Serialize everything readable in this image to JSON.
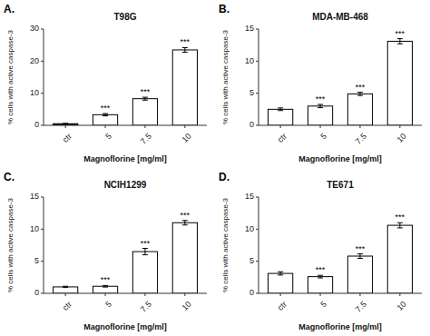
{
  "chart_data": [
    {
      "type": "bar",
      "title": "T98G",
      "categories": [
        "ctr",
        "5",
        "7.5",
        "10"
      ],
      "values": [
        0.5,
        3.3,
        8.3,
        23.5
      ],
      "errors": [
        0.1,
        0.35,
        0.45,
        0.7
      ],
      "colors": [
        "#1a1a1a",
        "#ffffff",
        "#ffffff",
        "#ffffff"
      ],
      "xlabel": "Magnoflorine [mg/ml]",
      "ylabel": "% cells with active caspase-3",
      "ylim": [
        0,
        30
      ],
      "yticks": [
        0,
        10,
        20,
        30
      ],
      "grid": false,
      "annotations": [
        {
          "text": "A."
        },
        {
          "text": "***",
          "category": "5"
        },
        {
          "text": "***",
          "category": "7.5"
        },
        {
          "text": "***",
          "category": "10"
        }
      ]
    },
    {
      "type": "bar",
      "title": "MDA-MB-468",
      "categories": [
        "ctr",
        "5",
        "7.5",
        "10"
      ],
      "values": [
        2.5,
        3.0,
        4.9,
        13.1
      ],
      "errors": [
        0.2,
        0.25,
        0.25,
        0.4
      ],
      "colors": [
        "#ffffff",
        "#ffffff",
        "#ffffff",
        "#ffffff"
      ],
      "xlabel": "Magnoflorine [mg/ml]",
      "ylabel": "% cells with active caspase-3",
      "ylim": [
        0,
        15
      ],
      "yticks": [
        0,
        5,
        10,
        15
      ],
      "grid": false,
      "annotations": [
        {
          "text": "B."
        },
        {
          "text": "***",
          "category": "5"
        },
        {
          "text": "***",
          "category": "7.5"
        },
        {
          "text": "***",
          "category": "10"
        }
      ]
    },
    {
      "type": "bar",
      "title": "NCIH1299",
      "categories": [
        "ctr",
        "5",
        "7.5",
        "10"
      ],
      "values": [
        1.0,
        1.1,
        6.5,
        11.0
      ],
      "errors": [
        0.1,
        0.12,
        0.5,
        0.35
      ],
      "colors": [
        "#ffffff",
        "#ffffff",
        "#ffffff",
        "#ffffff"
      ],
      "xlabel": "Magnoflorine [mg/ml]",
      "ylabel": "% cells with active caspase-3",
      "ylim": [
        0,
        15
      ],
      "yticks": [
        0,
        5,
        10,
        15
      ],
      "grid": false,
      "annotations": [
        {
          "text": "C."
        },
        {
          "text": "***",
          "category": "5"
        },
        {
          "text": "***",
          "category": "7.5"
        },
        {
          "text": "***",
          "category": "10"
        }
      ]
    },
    {
      "type": "bar",
      "title": "TE671",
      "categories": [
        "ctr",
        "5",
        "7.5",
        "10"
      ],
      "values": [
        3.1,
        2.6,
        5.8,
        10.6
      ],
      "errors": [
        0.25,
        0.2,
        0.35,
        0.4
      ],
      "colors": [
        "#ffffff",
        "#ffffff",
        "#ffffff",
        "#ffffff"
      ],
      "xlabel": "Magnoflorine [mg/ml]",
      "ylabel": "% cells with active caspase-3",
      "ylim": [
        0,
        15
      ],
      "yticks": [
        0,
        5,
        10,
        15
      ],
      "grid": false,
      "annotations": [
        {
          "text": "D."
        },
        {
          "text": "***",
          "category": "5"
        },
        {
          "text": "***",
          "category": "7.5"
        },
        {
          "text": "***",
          "category": "10"
        }
      ]
    }
  ]
}
